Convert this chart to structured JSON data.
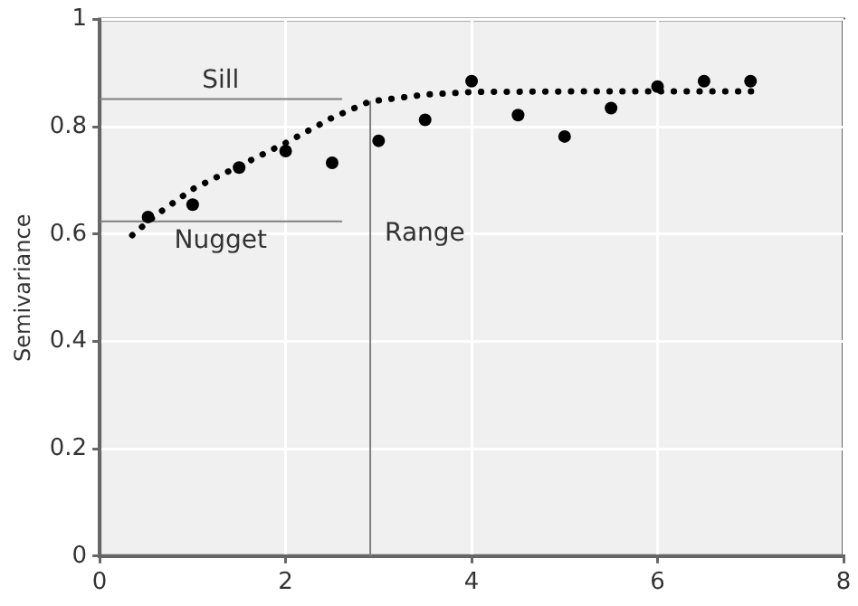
{
  "chart_data": {
    "type": "scatter",
    "ylabel": "Semivariance",
    "xlim": [
      0,
      8
    ],
    "xticks": [
      0,
      2,
      4,
      6,
      8
    ],
    "ylim": [
      0,
      1
    ],
    "yticks": [
      0,
      0.2,
      0.4,
      0.6,
      0.8,
      1
    ],
    "grid": true,
    "legend": false,
    "marker": "circle",
    "series": [
      {
        "color": "#000000",
        "x": [
          0.52,
          1.0,
          1.5,
          2.0,
          2.5,
          3.0,
          3.5,
          4.0,
          4.5,
          5.0,
          5.5,
          6.0,
          6.5,
          7.0
        ],
        "values": [
          0.632,
          0.655,
          0.724,
          0.755,
          0.733,
          0.774,
          0.813,
          0.885,
          0.822,
          0.782,
          0.835,
          0.875,
          0.885,
          0.885
        ]
      },
      {
        "type": "line",
        "color": "#000000",
        "line_style": "dotted",
        "marker": "none",
        "x": [
          0.35,
          0.6,
          1.0,
          1.5,
          2.0,
          2.5,
          2.9,
          3.5,
          4.0,
          5.0,
          6.0,
          7.1
        ],
        "values": [
          0.598,
          0.635,
          0.684,
          0.727,
          0.77,
          0.817,
          0.847,
          0.86,
          0.865,
          0.866,
          0.866,
          0.866
        ]
      },
      {
        "type": "line",
        "name": "Sill",
        "color": "#808080",
        "line_style": "solid",
        "marker": "none",
        "x": [
          0,
          2.6
        ],
        "values": [
          0.852,
          0.852
        ]
      },
      {
        "type": "line",
        "name": "Nugget",
        "color": "#808080",
        "line_style": "solid",
        "marker": "none",
        "x": [
          0,
          2.6
        ],
        "values": [
          0.624,
          0.624
        ]
      },
      {
        "type": "line",
        "name": "Range",
        "color": "#808080",
        "line_style": "solid",
        "marker": "none",
        "x": [
          2.91,
          2.91
        ],
        "values": [
          0,
          0.847
        ]
      }
    ]
  }
}
